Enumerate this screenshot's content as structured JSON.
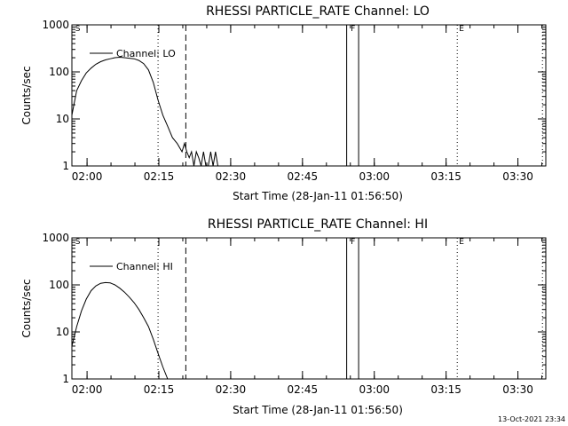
{
  "footer": {
    "timestamp": "13-Oct-2021 23:34"
  },
  "chart_data": [
    {
      "type": "line",
      "title": "RHESSI PARTICLE_RATE Channel: LO",
      "ylabel": "Counts/sec",
      "xlabel": "Start Time (28-Jan-11 01:56:50)",
      "x_units": "minutes after 01:56:50",
      "xlim": [
        0,
        99
      ],
      "ylim": [
        1,
        1000
      ],
      "yscale": "log",
      "x_ticks": [
        {
          "value": 3.17,
          "label": "02:00"
        },
        {
          "value": 18.17,
          "label": "02:15"
        },
        {
          "value": 33.17,
          "label": "02:30"
        },
        {
          "value": 48.17,
          "label": "02:45"
        },
        {
          "value": 63.17,
          "label": "03:00"
        },
        {
          "value": 78.17,
          "label": "03:15"
        },
        {
          "value": 93.17,
          "label": "03:30"
        }
      ],
      "y_ticks": [
        {
          "value": 1,
          "label": "1"
        },
        {
          "value": 10,
          "label": "10"
        },
        {
          "value": 100,
          "label": "100"
        },
        {
          "value": 1000,
          "label": "1000"
        }
      ],
      "legend": {
        "label": "Channel: LO",
        "position": "top-left"
      },
      "markers": [
        {
          "x": 0.5,
          "label": "S",
          "style": "text"
        },
        {
          "x": 18.0,
          "style": "dotted"
        },
        {
          "x": 23.8,
          "style": "dashed"
        },
        {
          "x": 57.4,
          "style": "solid"
        },
        {
          "x": 59.9,
          "style": "solid",
          "label": "F"
        },
        {
          "x": 80.5,
          "style": "dotted",
          "label": "E"
        },
        {
          "x": 98.3,
          "style": "dotted"
        }
      ],
      "series": [
        {
          "name": "Channel: LO",
          "x": [
            0,
            0.5,
            1,
            2,
            3,
            4,
            5,
            6,
            7,
            8,
            9,
            10,
            11,
            12,
            13,
            14,
            15,
            16,
            17,
            18,
            19,
            20,
            21,
            22,
            23,
            23.5,
            24,
            24.5,
            25,
            25.5,
            26,
            26.5,
            27,
            27.5,
            28,
            28.5,
            29,
            29.5,
            30,
            30.5,
            31
          ],
          "y": [
            12,
            22,
            40,
            65,
            95,
            120,
            145,
            165,
            180,
            190,
            200,
            205,
            200,
            195,
            190,
            175,
            150,
            110,
            60,
            25,
            12,
            7,
            4,
            3,
            2,
            3,
            2,
            1.5,
            2,
            1,
            2,
            1.5,
            1,
            2,
            1,
            1,
            2,
            1,
            2,
            1,
            1
          ]
        }
      ]
    },
    {
      "type": "line",
      "title": "RHESSI PARTICLE_RATE Channel: HI",
      "ylabel": "Counts/sec",
      "xlabel": "Start Time (28-Jan-11 01:56:50)",
      "x_units": "minutes after 01:56:50",
      "xlim": [
        0,
        99
      ],
      "ylim": [
        1,
        1000
      ],
      "yscale": "log",
      "x_ticks": [
        {
          "value": 3.17,
          "label": "02:00"
        },
        {
          "value": 18.17,
          "label": "02:15"
        },
        {
          "value": 33.17,
          "label": "02:30"
        },
        {
          "value": 48.17,
          "label": "02:45"
        },
        {
          "value": 63.17,
          "label": "03:00"
        },
        {
          "value": 78.17,
          "label": "03:15"
        },
        {
          "value": 93.17,
          "label": "03:30"
        }
      ],
      "y_ticks": [
        {
          "value": 1,
          "label": "1"
        },
        {
          "value": 10,
          "label": "10"
        },
        {
          "value": 100,
          "label": "100"
        },
        {
          "value": 1000,
          "label": "1000"
        }
      ],
      "legend": {
        "label": "Channel: HI",
        "position": "top-left"
      },
      "markers": [
        {
          "x": 0.5,
          "label": "S",
          "style": "text"
        },
        {
          "x": 18.0,
          "style": "dotted"
        },
        {
          "x": 23.8,
          "style": "dashed"
        },
        {
          "x": 57.4,
          "style": "solid"
        },
        {
          "x": 59.9,
          "style": "solid",
          "label": "F"
        },
        {
          "x": 80.5,
          "style": "dotted",
          "label": "E"
        },
        {
          "x": 98.3,
          "style": "dotted"
        }
      ],
      "series": [
        {
          "name": "Channel: HI",
          "x": [
            0,
            1,
            2,
            3,
            4,
            5,
            6,
            7,
            8,
            9,
            10,
            11,
            12,
            13,
            14,
            15,
            16,
            17,
            18,
            19,
            20
          ],
          "y": [
            5,
            13,
            28,
            50,
            75,
            95,
            108,
            112,
            110,
            100,
            85,
            70,
            55,
            42,
            30,
            20,
            13,
            7,
            3.5,
            1.8,
            1
          ]
        }
      ]
    }
  ]
}
